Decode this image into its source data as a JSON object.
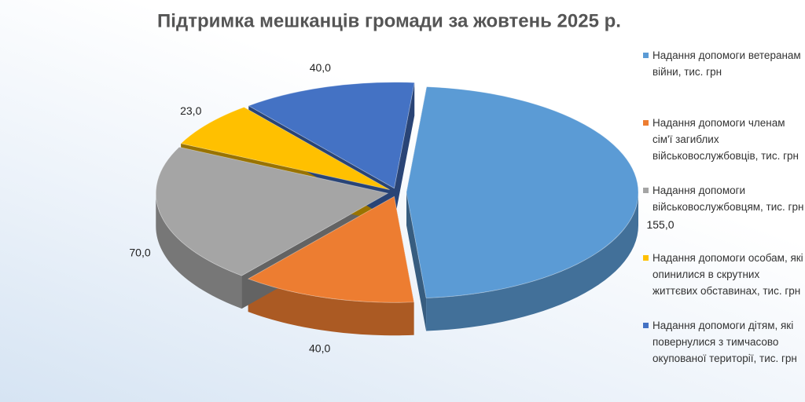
{
  "chart_data": {
    "type": "pie3d",
    "title": "Підтримка мешканців громади  за жовтень 2025 р.",
    "categories": [
      "Надання допомоги ветеранам війни, тис. грн",
      "Надання допомоги членам сім'ї загиблих військовослужбовців, тис. грн",
      "Надання допомоги військовослужбовцям, тис. грн",
      "Надання допомоги особам, які опинилися в скрутних життєвих обставинах, тис. грн",
      "Надання допомоги дітям, які повернулися з тимчасово окупованої території, тис. грн"
    ],
    "values": [
      155,
      40,
      70,
      23,
      40
    ],
    "value_labels": [
      "155,0",
      "40,0",
      "70,0",
      "23,0",
      "40,0"
    ],
    "colors": [
      "#5b9bd5",
      "#ed7d31",
      "#a5a5a5",
      "#ffc000",
      "#4472c4"
    ],
    "legend": "right"
  }
}
